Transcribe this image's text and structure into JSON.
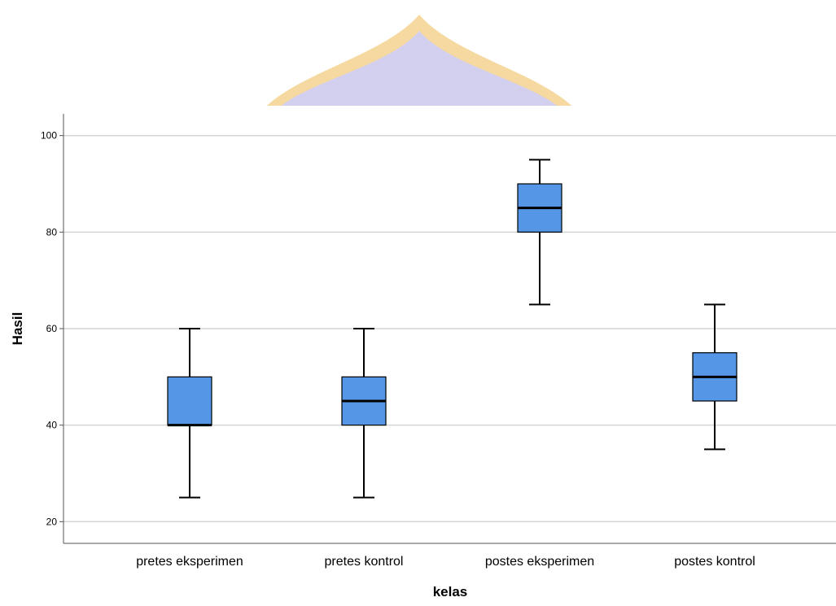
{
  "colors": {
    "box_fill": "#5596e6",
    "stroke": "#000000",
    "grid": "#d4d4d4",
    "axis": "#555555",
    "watermark_light": "#d3d0ef",
    "watermark_outline": "#f5d9a0"
  },
  "watermark": {
    "type": "dome-watermark-icon"
  },
  "chart_data": {
    "type": "boxplot",
    "xlabel": "kelas",
    "ylabel": "Hasil",
    "ylim": [
      15.5,
      104.5
    ],
    "yticks": [
      20,
      40,
      60,
      80,
      100
    ],
    "grid": true,
    "categories": [
      "pretes eksperimen",
      "pretes kontrol",
      "postes eksperimen",
      "postes kontrol"
    ],
    "boxes": [
      {
        "min": 25,
        "q1": 40,
        "median": 40,
        "q3": 50,
        "max": 60
      },
      {
        "min": 25,
        "q1": 40,
        "median": 45,
        "q3": 50,
        "max": 60
      },
      {
        "min": 65,
        "q1": 80,
        "median": 85,
        "q3": 90,
        "max": 95
      },
      {
        "min": 35,
        "q1": 45,
        "median": 50,
        "q3": 55,
        "max": 65
      }
    ]
  }
}
